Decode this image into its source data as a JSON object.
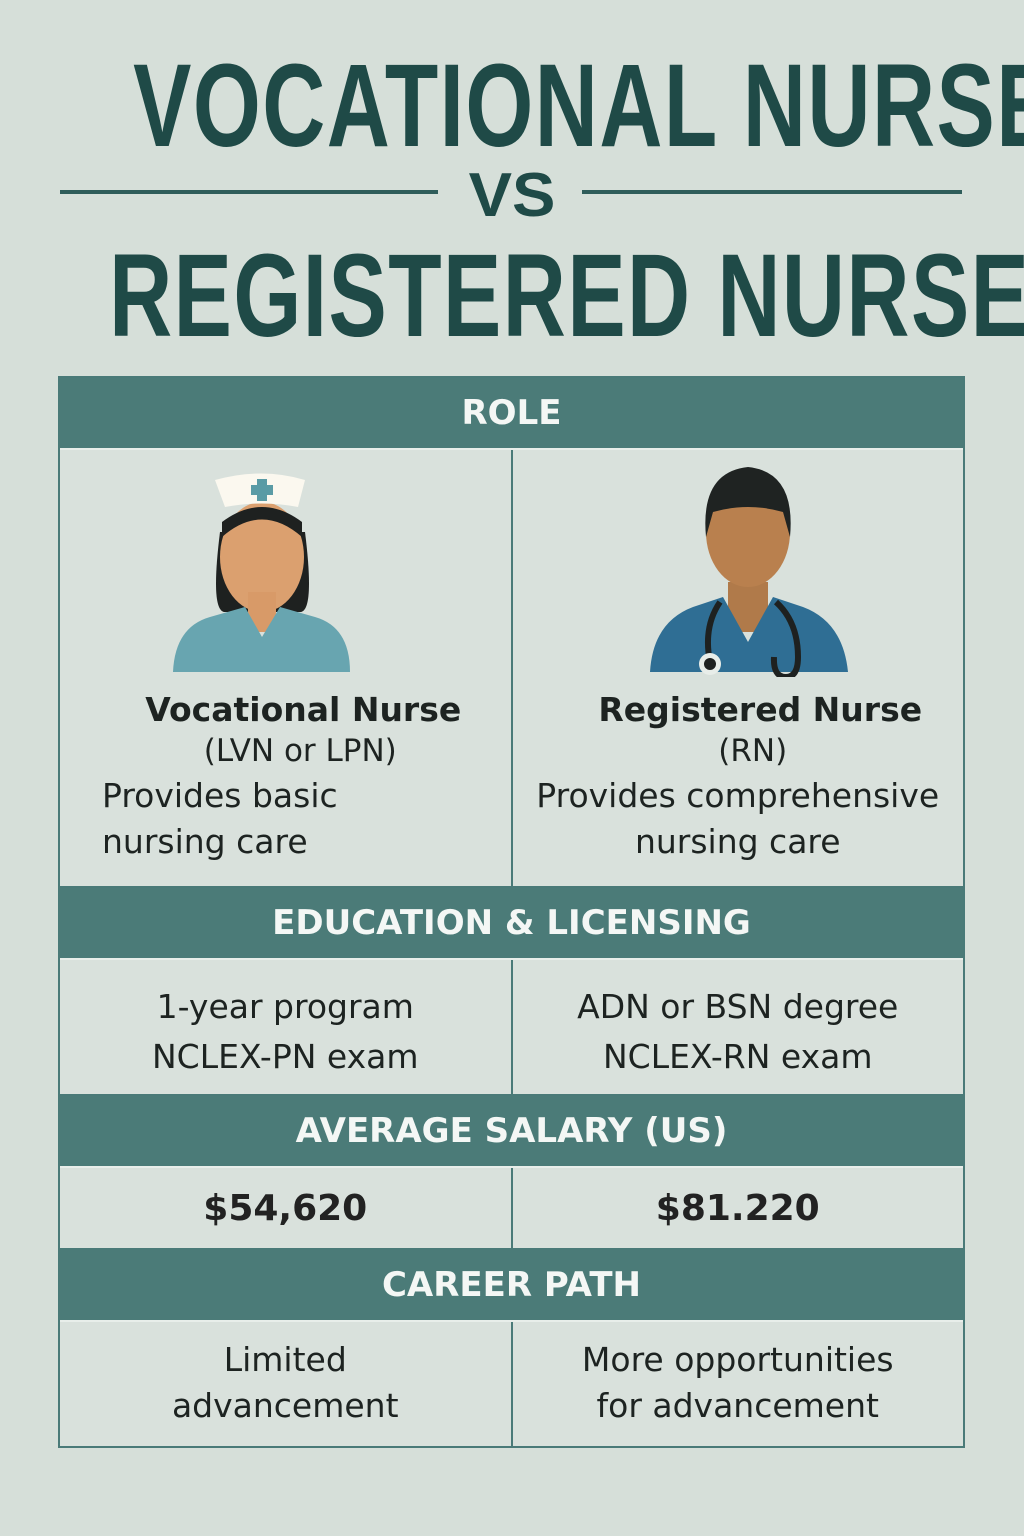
{
  "title": {
    "line1": "VOCATIONAL NURSE",
    "vs": "VS",
    "line2": "REGISTERED NURSE"
  },
  "colors": {
    "background": "#d6dfd9",
    "header": "#4b7b78",
    "title": "#1f4a47"
  },
  "sections": {
    "role": {
      "header": "ROLE",
      "left": {
        "icon": "female-nurse-avatar-icon",
        "name": "Vocational Nurse",
        "abbr": "(LVN or LPN)",
        "desc1": "Provides basic",
        "desc2": "nursing care"
      },
      "right": {
        "icon": "male-nurse-stethoscope-avatar-icon",
        "name": "Registered Nurse",
        "abbr": "(RN)",
        "desc1": "Provides comprehensive",
        "desc2": "nursing care"
      }
    },
    "education": {
      "header": "EDUCATION & LICENSING",
      "left": {
        "line1": "1-year program",
        "line2": "NCLEX-PN exam"
      },
      "right": {
        "line1": "ADN or BSN degree",
        "line2": "NCLEX-RN exam"
      }
    },
    "salary": {
      "header": "AVERAGE SALARY (US)",
      "left": "$54,620",
      "right": "$81.220"
    },
    "career": {
      "header": "CAREER PATH",
      "left": {
        "line1": "Limited",
        "line2": "advancement"
      },
      "right": {
        "line1": "More opportunities",
        "line2": "for advancement"
      }
    }
  }
}
